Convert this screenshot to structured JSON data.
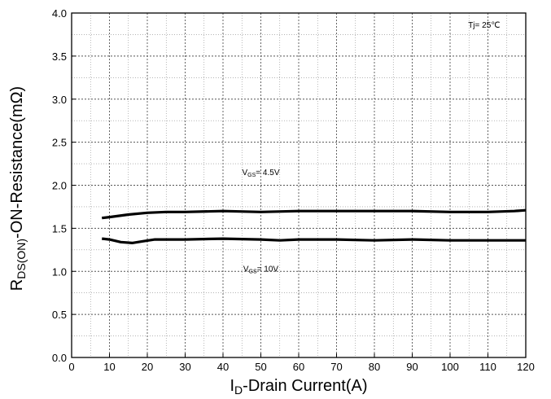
{
  "chart_data": {
    "type": "line",
    "xlabel": {
      "main": "I",
      "sub": "D",
      "rest": "-Drain Current(A)"
    },
    "ylabel": {
      "main": "R",
      "sub": "DS(ON)",
      "rest": "-ON-Resistance(mΩ)"
    },
    "xlim": [
      0,
      120
    ],
    "ylim": [
      0,
      4.0
    ],
    "x_ticks": [
      0,
      10,
      20,
      30,
      40,
      50,
      60,
      70,
      80,
      90,
      100,
      110,
      120
    ],
    "x_tick_labels": [
      "0",
      "10",
      "20",
      "30",
      "40",
      "50",
      "60",
      "70",
      "80",
      "90",
      "100",
      "110",
      "120"
    ],
    "y_ticks": [
      0,
      0.5,
      1.0,
      1.5,
      2.0,
      2.5,
      3.0,
      3.5,
      4.0
    ],
    "y_tick_labels": [
      "0.0",
      "0.5",
      "1.0",
      "1.5",
      "2.0",
      "2.5",
      "3.0",
      "3.5",
      "4.0"
    ],
    "grid": true,
    "series": [
      {
        "name": "VGS= 4.5V",
        "label": {
          "main": "V",
          "sub": "GS",
          "rest": "= 4.5V",
          "x": 50,
          "y": 2.12
        },
        "x": [
          8,
          10,
          15,
          20,
          25,
          30,
          40,
          50,
          60,
          70,
          80,
          90,
          100,
          110,
          117,
          120
        ],
        "y": [
          1.62,
          1.63,
          1.66,
          1.68,
          1.69,
          1.69,
          1.7,
          1.69,
          1.7,
          1.7,
          1.7,
          1.7,
          1.69,
          1.69,
          1.7,
          1.71
        ]
      },
      {
        "name": "VGS= 10V",
        "label": {
          "main": "V",
          "sub": "GS",
          "rest": "= 10V",
          "x": 50,
          "y": 1.0
        },
        "x": [
          8,
          10,
          13,
          16,
          19,
          22,
          25,
          30,
          40,
          50,
          55,
          60,
          70,
          80,
          90,
          100,
          110,
          120
        ],
        "y": [
          1.38,
          1.37,
          1.34,
          1.33,
          1.35,
          1.37,
          1.37,
          1.37,
          1.38,
          1.37,
          1.36,
          1.37,
          1.37,
          1.36,
          1.37,
          1.36,
          1.36,
          1.36
        ]
      }
    ],
    "annotations": [
      {
        "text": "Tj= 25℃",
        "x": 109,
        "y": 3.83
      }
    ],
    "line_color": "#000000"
  }
}
